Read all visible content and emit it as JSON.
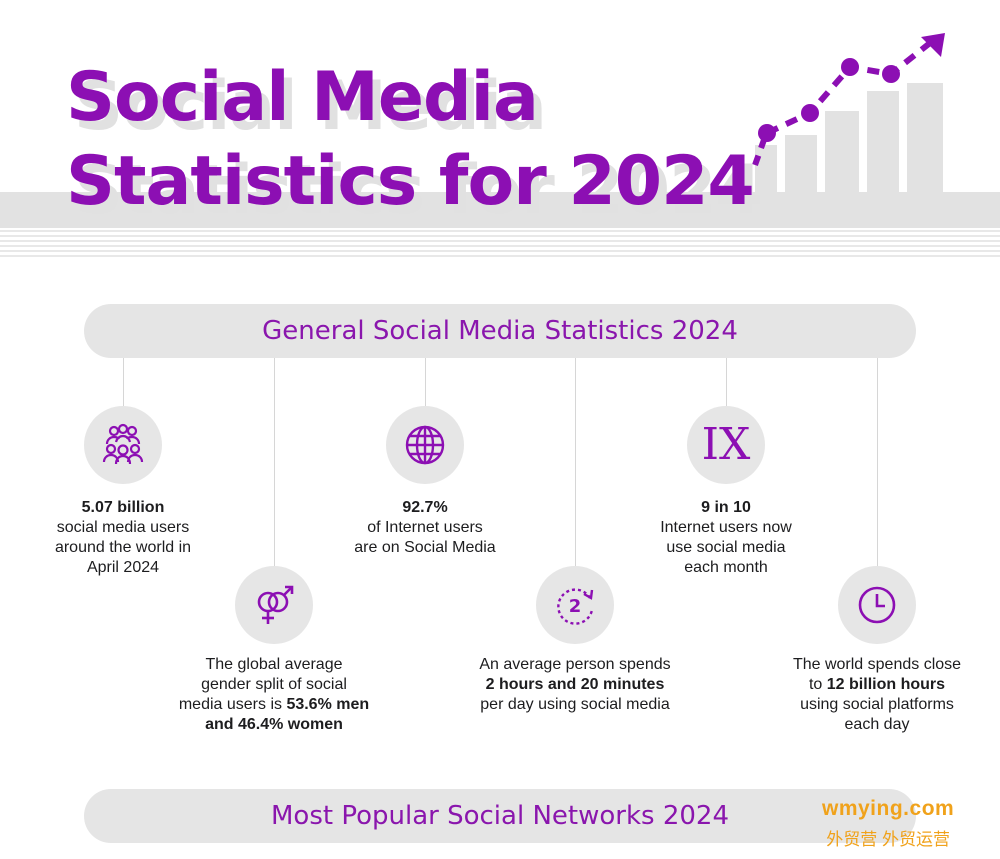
{
  "header": {
    "title_line1": "Social Media",
    "title_line2": "Statistics for 2024"
  },
  "sections": {
    "general_title": "General Social Media Statistics 2024",
    "networks_title": "Most Popular Social Networks 2024"
  },
  "stats": [
    {
      "icon": "users-group-icon",
      "bold": "5.07 billion",
      "text": [
        "social media users",
        "around the world in",
        "April 2024"
      ]
    },
    {
      "icon": "gender-icon",
      "text": [
        "The global average",
        "gender split of social",
        "media users is "
      ],
      "bold": [
        "53.6% men",
        "and 46.4% women"
      ]
    },
    {
      "icon": "globe-icon",
      "bold": "92.7%",
      "text": [
        "of Internet users",
        "are on Social Media"
      ]
    },
    {
      "icon": "clock-two-icon",
      "pre": "An average person spends",
      "bold": "2 hours and 20 minutes",
      "post": "per day using social media"
    },
    {
      "icon": "roman-nine-icon",
      "glyph": "IX",
      "bold": "9 in 10",
      "text": [
        "Internet users now",
        "use social media",
        "each month"
      ]
    },
    {
      "icon": "clock-icon",
      "pre": "The world spends close",
      "mid_pre": "to ",
      "bold": "12 billion hours",
      "text": [
        "using social platforms",
        "each day"
      ]
    }
  ],
  "watermark": {
    "line1": "wmying.com",
    "line2": "外贸营 外贸运营"
  },
  "colors": {
    "accent": "#8c0fb3",
    "pill_bg": "#e5e5e5",
    "watermark": "#f0a21b"
  }
}
